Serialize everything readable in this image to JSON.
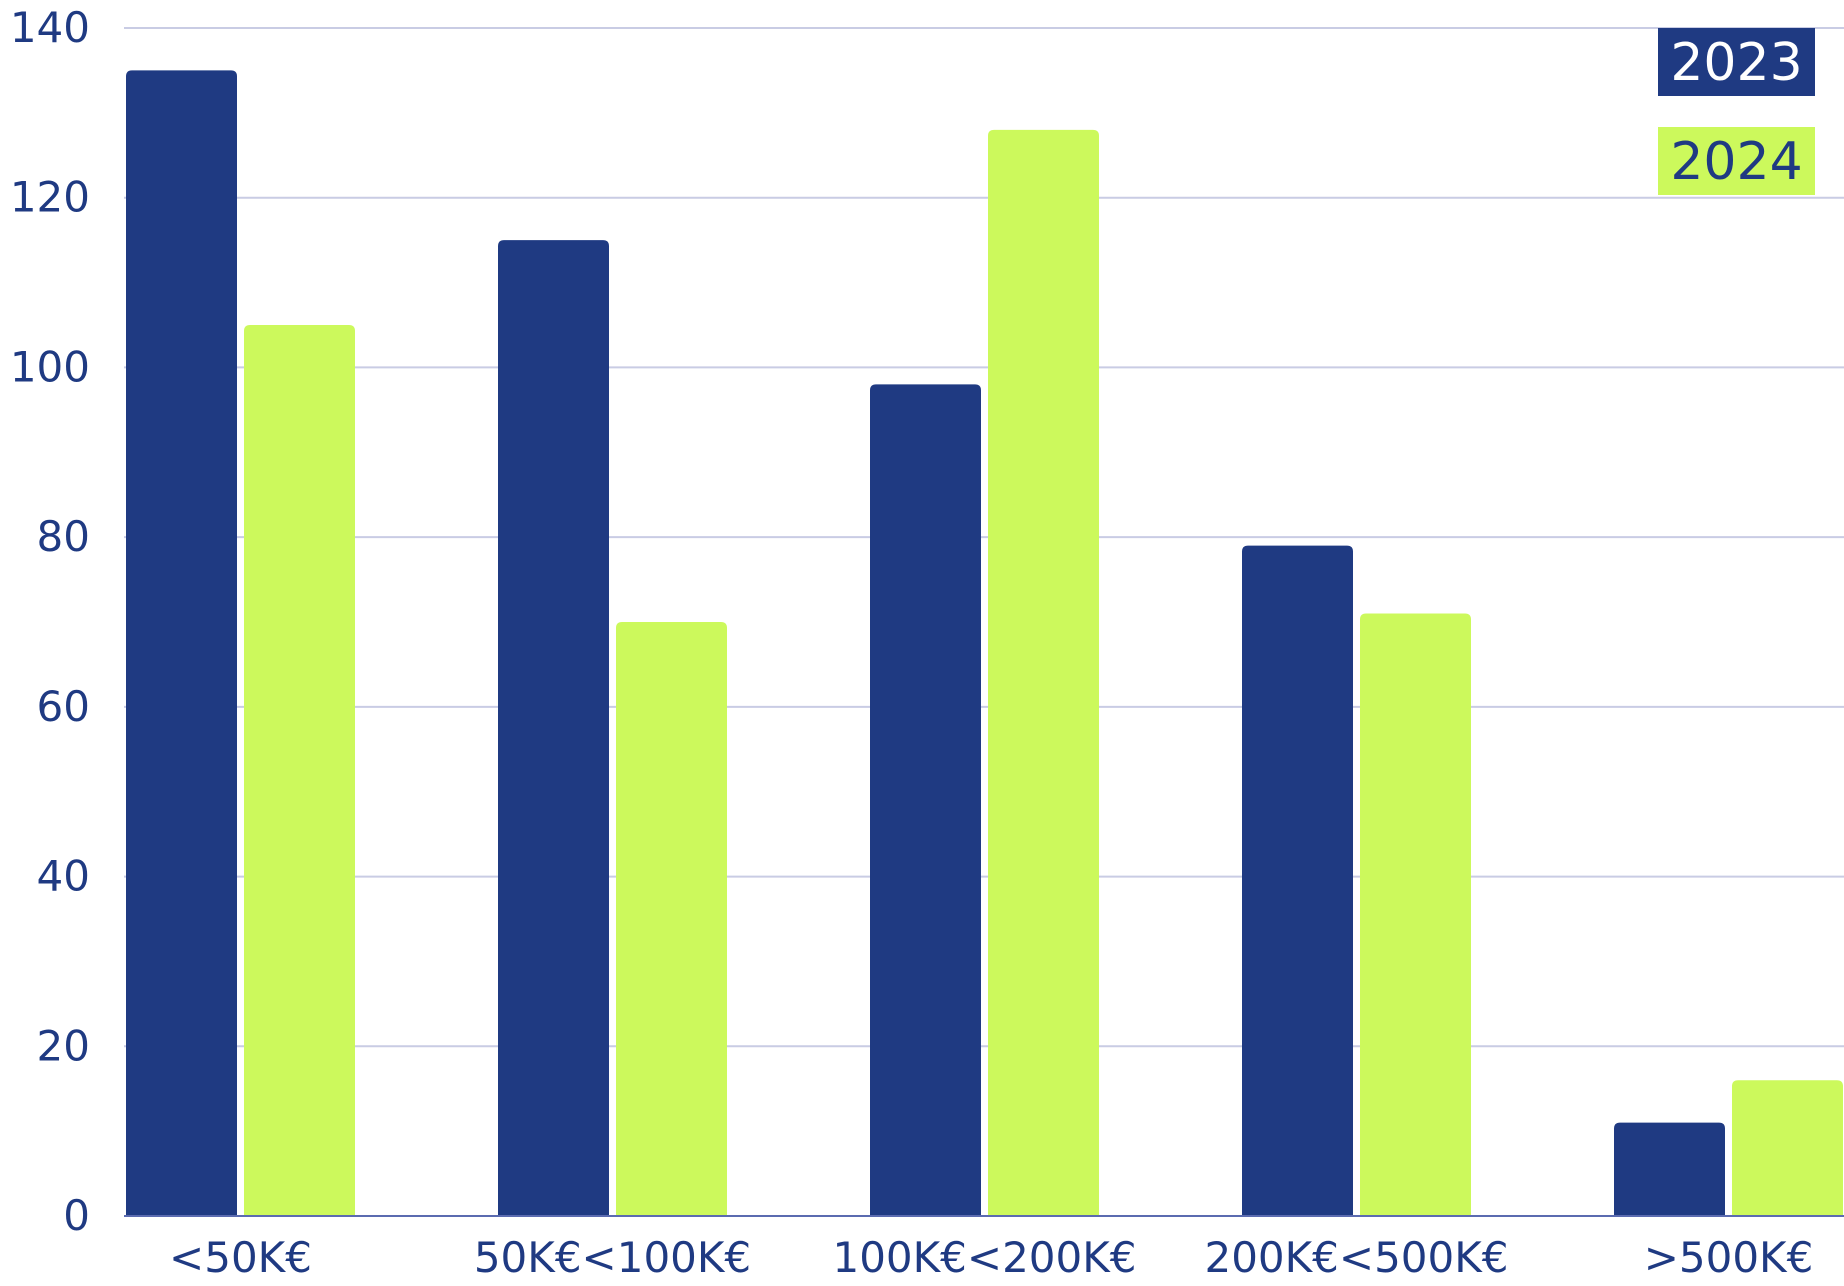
{
  "chart_data": {
    "type": "bar",
    "categories": [
      "<50K€",
      "50K€<100K€",
      "100K€<200K€",
      "200K€<500K€",
      ">500K€"
    ],
    "series": [
      {
        "name": "2023",
        "values": [
          135,
          115,
          98,
          79,
          11
        ],
        "color": "#1f3a82",
        "text_color": "#ffffff"
      },
      {
        "name": "2024",
        "values": [
          105,
          70,
          128,
          71,
          16
        ],
        "color": "#ccf95c",
        "text_color": "#1f3a82"
      }
    ],
    "yticks": [
      "0",
      "20",
      "40",
      "60",
      "80",
      "100",
      "120",
      "140"
    ],
    "ylim": [
      0,
      140
    ],
    "grid": true,
    "legend_position": "top-right"
  }
}
